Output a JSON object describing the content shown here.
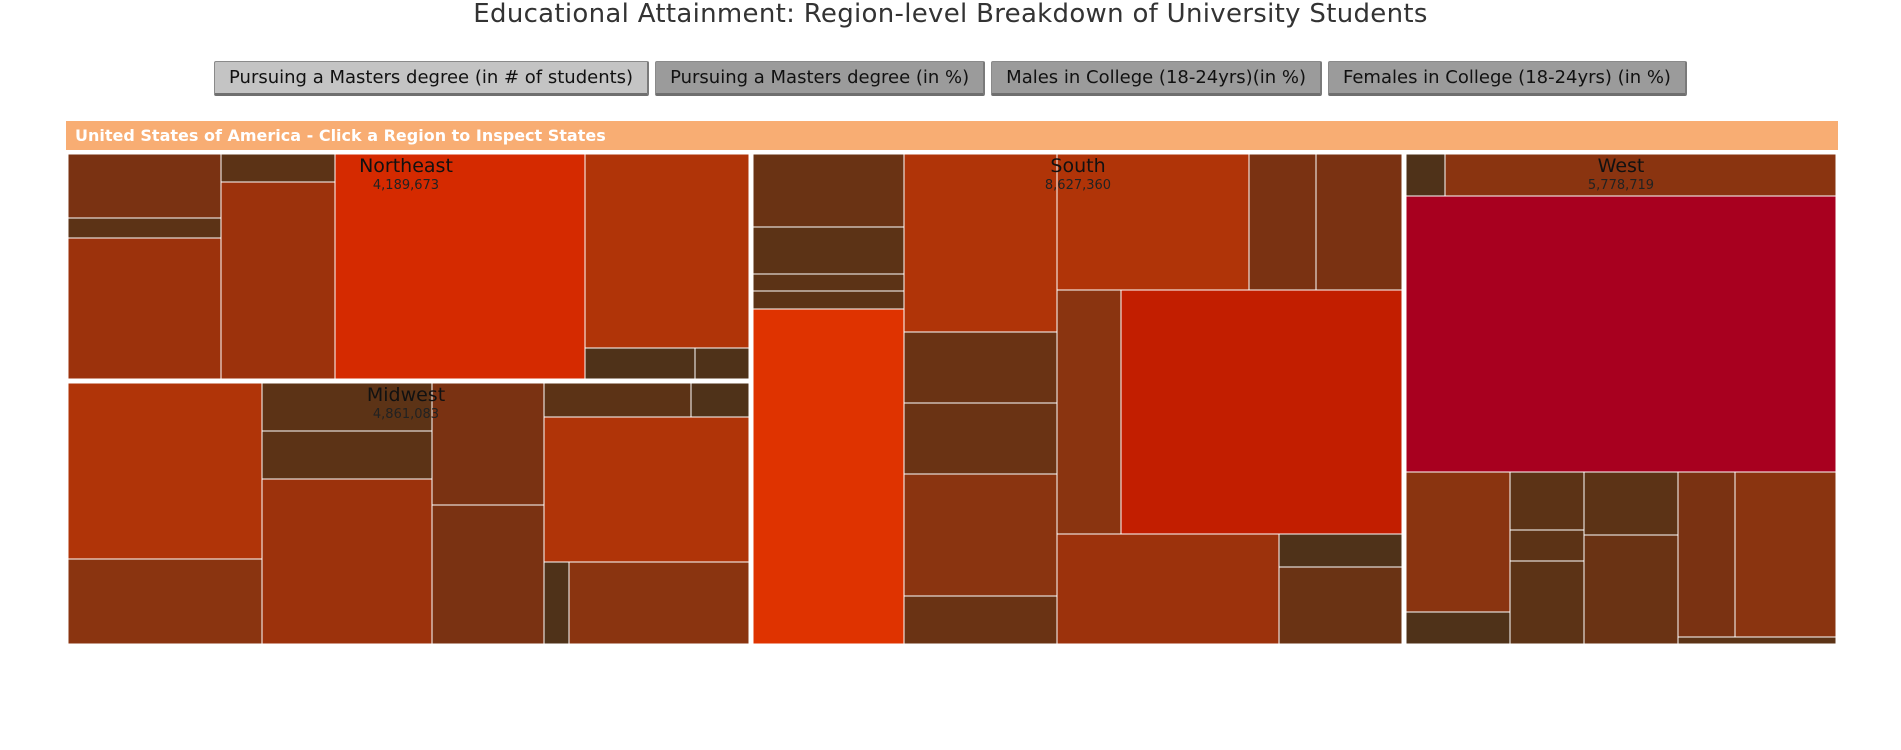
{
  "page": {
    "title": "Educational Attainment: Region-level Breakdown of University Students"
  },
  "buttons": [
    {
      "label": "Pursuing a Masters degree (in # of students)",
      "active": true
    },
    {
      "label": "Pursuing a Masters degree (in %)",
      "active": false
    },
    {
      "label": "Males in College (18-24yrs)(in %)",
      "active": false
    },
    {
      "label": "Females in College (18-24yrs) (in %)",
      "active": false
    }
  ],
  "breadcrumb": {
    "label": "United States of America - Click a Region to Inspect States"
  },
  "colors": {
    "breadcrumb_bg": "#f8ad73",
    "cell_scale": [
      "#4f3219",
      "#5c3316",
      "#6a3314",
      "#7a3212",
      "#8a3410",
      "#9c320c",
      "#b03408",
      "#c21e00",
      "#d52a00",
      "#df3300",
      "#a8001f"
    ]
  },
  "chart_data": {
    "type": "treemap",
    "title": "Educational Attainment: Region-level Breakdown of University Students",
    "metric": "Pursuing a Masters degree (in # of students)",
    "regions": [
      {
        "name": "Northeast",
        "value": 4189673,
        "value_label": "4,189,673"
      },
      {
        "name": "Midwest",
        "value": 4861083,
        "value_label": "4,861,083"
      },
      {
        "name": "South",
        "value": 8627360,
        "value_label": "8,627,360"
      },
      {
        "name": "West",
        "value": 5778719,
        "value_label": "5,778,719"
      }
    ]
  }
}
